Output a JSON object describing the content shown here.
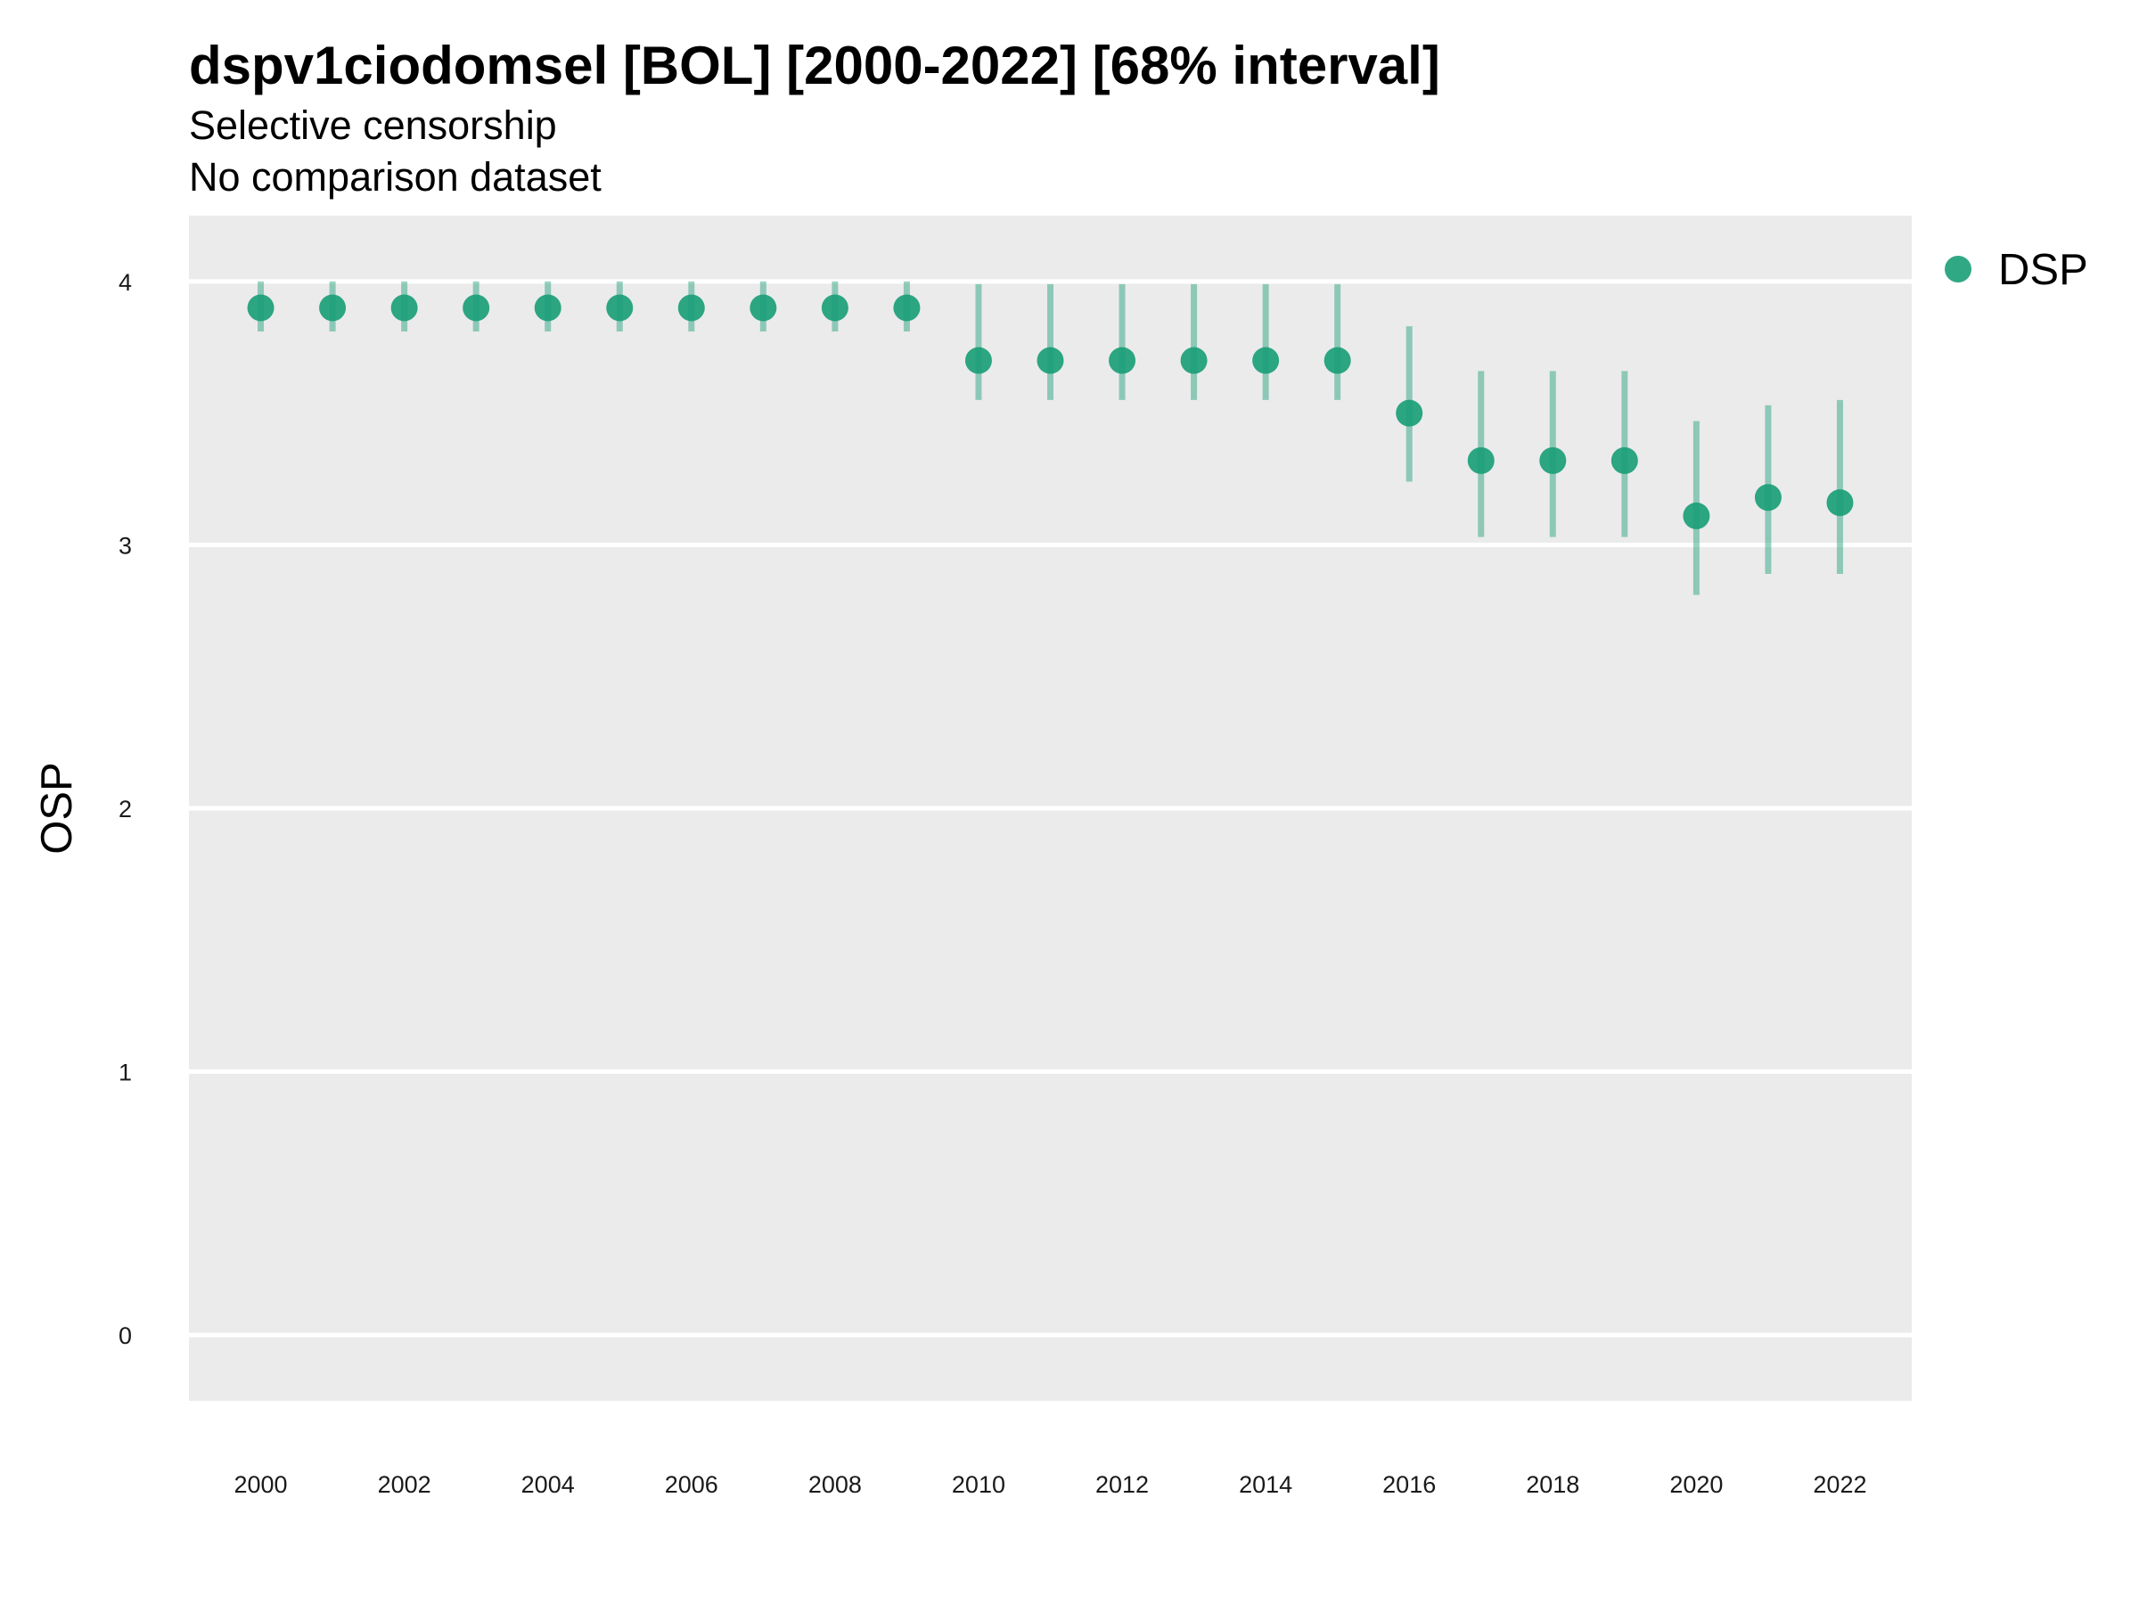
{
  "chart_data": {
    "type": "scatter",
    "title": "dspv1ciodomsel [BOL] [2000-2022] [68% interval]",
    "subtitle": "Selective censorship",
    "caption_line": "No comparison dataset",
    "ylabel": "OSP",
    "xlabel": "",
    "ylim": [
      -0.25,
      4.25
    ],
    "yticks": [
      0,
      1,
      2,
      3,
      4
    ],
    "xticks": [
      2000,
      2002,
      2004,
      2006,
      2008,
      2010,
      2012,
      2014,
      2016,
      2018,
      2020,
      2022
    ],
    "grid": true,
    "legend_position": "right",
    "series": [
      {
        "name": "DSP",
        "color": "#1b9e77",
        "x": [
          2000,
          2001,
          2002,
          2003,
          2004,
          2005,
          2006,
          2007,
          2008,
          2009,
          2010,
          2011,
          2012,
          2013,
          2014,
          2015,
          2016,
          2017,
          2018,
          2019,
          2020,
          2021,
          2022
        ],
        "y": [
          3.9,
          3.9,
          3.9,
          3.9,
          3.9,
          3.9,
          3.9,
          3.9,
          3.9,
          3.9,
          3.7,
          3.7,
          3.7,
          3.7,
          3.7,
          3.7,
          3.5,
          3.32,
          3.32,
          3.32,
          3.11,
          3.18,
          3.16
        ],
        "lower": [
          3.81,
          3.81,
          3.81,
          3.81,
          3.81,
          3.81,
          3.81,
          3.81,
          3.81,
          3.81,
          3.55,
          3.55,
          3.55,
          3.55,
          3.55,
          3.55,
          3.24,
          3.03,
          3.03,
          3.03,
          2.81,
          2.89,
          2.89
        ],
        "upper": [
          4.0,
          4.0,
          4.0,
          4.0,
          4.0,
          4.0,
          4.0,
          4.0,
          4.0,
          4.0,
          3.99,
          3.99,
          3.99,
          3.99,
          3.99,
          3.99,
          3.83,
          3.66,
          3.66,
          3.66,
          3.47,
          3.53,
          3.55
        ]
      }
    ]
  }
}
